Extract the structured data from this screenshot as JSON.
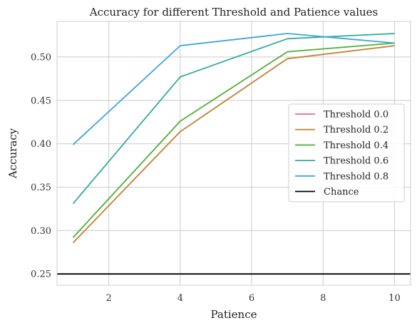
{
  "chart_data": {
    "type": "line",
    "title": "Accuracy for different Threshold and Patience values",
    "xlabel": "Patience",
    "ylabel": "Accuracy",
    "xlim": [
      0.55,
      10.45
    ],
    "ylim": [
      0.237,
      0.541
    ],
    "xticks": [
      2,
      4,
      6,
      8,
      10
    ],
    "yticks": [
      0.25,
      0.3,
      0.35,
      0.4,
      0.45,
      0.5
    ],
    "ytick_labels": [
      "0.25",
      "0.30",
      "0.35",
      "0.40",
      "0.45",
      "0.50"
    ],
    "grid": true,
    "legend_position": "center-right",
    "x": [
      1,
      4,
      7,
      10
    ],
    "series": [
      {
        "name": "Threshold 0.0",
        "color": "#f06c7b",
        "values": [
          0.286,
          0.414,
          0.498,
          0.513
        ]
      },
      {
        "name": "Threshold 0.2",
        "color": "#c28a3c",
        "values": [
          0.286,
          0.414,
          0.498,
          0.513
        ]
      },
      {
        "name": "Threshold 0.4",
        "color": "#4daf3a",
        "values": [
          0.292,
          0.426,
          0.506,
          0.516
        ]
      },
      {
        "name": "Threshold 0.6",
        "color": "#32ab9c",
        "values": [
          0.331,
          0.477,
          0.521,
          0.527
        ]
      },
      {
        "name": "Threshold 0.8",
        "color": "#3ea4dc",
        "values": [
          0.399,
          0.513,
          0.527,
          0.516
        ]
      }
    ],
    "reference_line": {
      "name": "Chance",
      "value": 0.25,
      "color": "#000000"
    }
  }
}
